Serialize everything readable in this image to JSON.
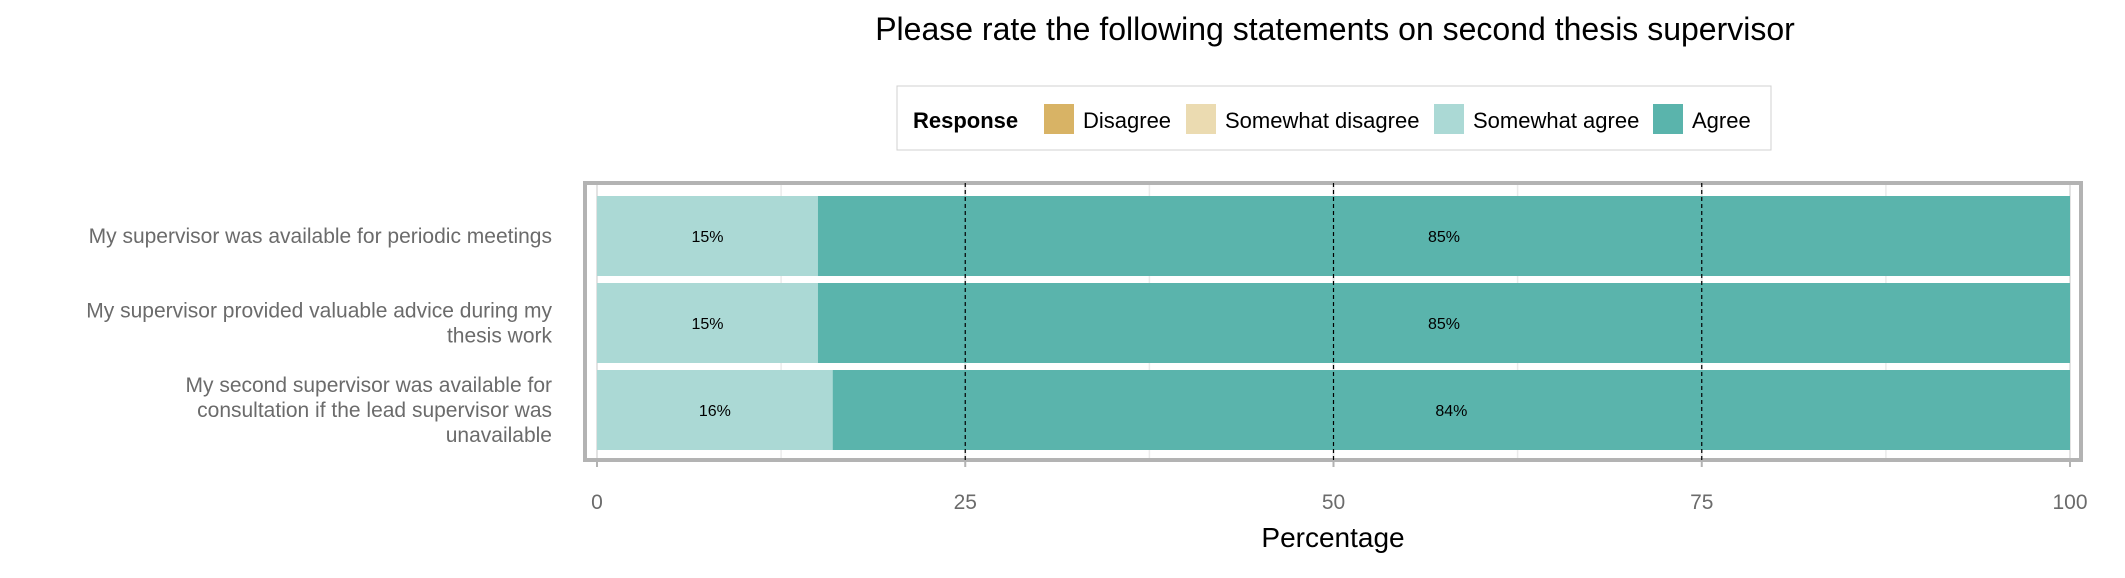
{
  "chart_data": {
    "type": "bar",
    "orientation": "horizontal",
    "stacked": true,
    "title": "Please rate the following statements on second thesis supervisor",
    "xlabel": "Percentage",
    "ylabel": "",
    "xlim": [
      0,
      100
    ],
    "xticks": [
      "0",
      "25",
      "50",
      "75",
      "100"
    ],
    "grid": true,
    "legend": {
      "title": "Response",
      "placement": "top-center",
      "items": [
        "Disagree",
        "Somewhat disagree",
        "Somewhat agree",
        "Agree"
      ]
    },
    "categories": [
      "My supervisor was available for periodic meetings",
      "My supervisor provided valuable advice during my thesis work",
      "My second supervisor was available for consultation if the lead supervisor was unavailable"
    ],
    "category_label_lines": [
      [
        "My supervisor was available for periodic meetings"
      ],
      [
        "My supervisor provided valuable advice during my",
        "thesis work"
      ],
      [
        "My second supervisor was available for",
        "consultation if the lead supervisor was",
        "unavailable"
      ]
    ],
    "series": [
      {
        "name": "Disagree",
        "color": "#d8b365",
        "values": [
          0,
          0,
          0
        ],
        "labels": [
          "",
          "",
          ""
        ]
      },
      {
        "name": "Somewhat disagree",
        "color": "#ebdbb1",
        "values": [
          0,
          0,
          0
        ],
        "labels": [
          "",
          "",
          ""
        ]
      },
      {
        "name": "Somewhat agree",
        "color": "#abd9d5",
        "values": [
          15,
          15,
          16
        ],
        "labels": [
          "15%",
          "15%",
          "16%"
        ]
      },
      {
        "name": "Agree",
        "color": "#5ab4ac",
        "values": [
          85,
          85,
          84
        ],
        "labels": [
          "85%",
          "85%",
          "84%"
        ]
      }
    ]
  }
}
